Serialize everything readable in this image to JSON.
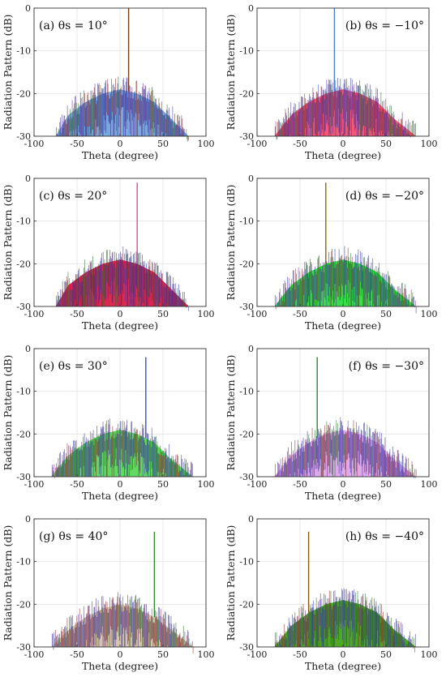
{
  "chart_data": [
    {
      "type": "bar",
      "panel_label": "(a) θs = 10°",
      "steer_angle_deg": 10,
      "xlabel": "Theta (degree)",
      "ylabel": "Radiation Pattern (dB)",
      "xlim": [
        -100,
        100
      ],
      "ylim": [
        -30,
        0
      ],
      "xticks": [
        "-100",
        "-50",
        "0",
        "50",
        "100"
      ],
      "yticks": [
        "0",
        "-10",
        "-20",
        "-30"
      ],
      "grid": true,
      "fill_color": "#6a9fd8",
      "spike_color": "#7a3b10",
      "sidelobe_envelope": [
        {
          "theta": -75,
          "level": -30
        },
        {
          "theta": -60,
          "level": -25
        },
        {
          "theta": -40,
          "level": -22
        },
        {
          "theta": -20,
          "level": -20
        },
        {
          "theta": 0,
          "level": -19
        },
        {
          "theta": 20,
          "level": -20
        },
        {
          "theta": 40,
          "level": -22
        },
        {
          "theta": 60,
          "level": -26
        },
        {
          "theta": 80,
          "level": -30
        }
      ],
      "main_beam": {
        "theta": 10,
        "level": 0
      }
    },
    {
      "type": "bar",
      "panel_label": "(b) θs = −10°",
      "steer_angle_deg": -10,
      "xlabel": "Theta (degree)",
      "ylabel": "Radiation Pattern (dB)",
      "xlim": [
        -100,
        100
      ],
      "ylim": [
        -30,
        0
      ],
      "xticks": [
        "-100",
        "-50",
        "0",
        "50",
        "100"
      ],
      "yticks": [
        "0",
        "-10",
        "-20",
        "-30"
      ],
      "grid": true,
      "fill_color": "#f0456a",
      "spike_color": "#4a7fd0",
      "sidelobe_envelope": [
        {
          "theta": -80,
          "level": -30
        },
        {
          "theta": -60,
          "level": -25
        },
        {
          "theta": -40,
          "level": -22
        },
        {
          "theta": -20,
          "level": -20
        },
        {
          "theta": 0,
          "level": -19
        },
        {
          "theta": 20,
          "level": -20
        },
        {
          "theta": 40,
          "level": -22
        },
        {
          "theta": 60,
          "level": -26
        },
        {
          "theta": 85,
          "level": -30
        }
      ],
      "main_beam": {
        "theta": -10,
        "level": 0
      }
    },
    {
      "type": "bar",
      "panel_label": "(c) θs = 20°",
      "steer_angle_deg": 20,
      "xlabel": "Theta (degree)",
      "ylabel": "Radiation Pattern (dB)",
      "xlim": [
        -100,
        100
      ],
      "ylim": [
        -30,
        0
      ],
      "xticks": [
        "-100",
        "-50",
        "0",
        "50",
        "100"
      ],
      "yticks": [
        "0",
        "-10",
        "-20",
        "-30"
      ],
      "grid": true,
      "fill_color": "#d8103c",
      "spike_color": "#d84aa0",
      "sidelobe_envelope": [
        {
          "theta": -75,
          "level": -30
        },
        {
          "theta": -60,
          "level": -25
        },
        {
          "theta": -40,
          "level": -22
        },
        {
          "theta": -20,
          "level": -20
        },
        {
          "theta": 0,
          "level": -19
        },
        {
          "theta": 20,
          "level": -20
        },
        {
          "theta": 40,
          "level": -22
        },
        {
          "theta": 60,
          "level": -26
        },
        {
          "theta": 80,
          "level": -30
        }
      ],
      "main_beam": {
        "theta": 20,
        "level": -1
      }
    },
    {
      "type": "bar",
      "panel_label": "(d) θs = −20°",
      "steer_angle_deg": -20,
      "xlabel": "Theta (degree)",
      "ylabel": "Radiation Pattern (dB)",
      "xlim": [
        -100,
        100
      ],
      "ylim": [
        -30,
        0
      ],
      "xticks": [
        "-100",
        "-50",
        "0",
        "50",
        "100"
      ],
      "yticks": [
        "0",
        "-10",
        "-20",
        "-30"
      ],
      "grid": true,
      "fill_color": "#22dd33",
      "spike_color": "#8a6a10",
      "sidelobe_envelope": [
        {
          "theta": -80,
          "level": -30
        },
        {
          "theta": -60,
          "level": -25
        },
        {
          "theta": -40,
          "level": -22
        },
        {
          "theta": -20,
          "level": -20
        },
        {
          "theta": 0,
          "level": -19
        },
        {
          "theta": 20,
          "level": -20
        },
        {
          "theta": 40,
          "level": -22
        },
        {
          "theta": 60,
          "level": -26
        },
        {
          "theta": 85,
          "level": -30
        }
      ],
      "main_beam": {
        "theta": -20,
        "level": -1
      }
    },
    {
      "type": "bar",
      "panel_label": "(e) θs = 30°",
      "steer_angle_deg": 30,
      "xlabel": "Theta (degree)",
      "ylabel": "Radiation Pattern (dB)",
      "xlim": [
        -100,
        100
      ],
      "ylim": [
        -30,
        0
      ],
      "xticks": [
        "-100",
        "-50",
        "0",
        "50",
        "100"
      ],
      "yticks": [
        "0",
        "-10",
        "-20",
        "-30"
      ],
      "grid": true,
      "fill_color": "#4fd64f",
      "spike_color": "#3a4fc0",
      "sidelobe_envelope": [
        {
          "theta": -80,
          "level": -30
        },
        {
          "theta": -60,
          "level": -25
        },
        {
          "theta": -40,
          "level": -22
        },
        {
          "theta": -20,
          "level": -20
        },
        {
          "theta": 0,
          "level": -19
        },
        {
          "theta": 20,
          "level": -20
        },
        {
          "theta": 40,
          "level": -22
        },
        {
          "theta": 60,
          "level": -26
        },
        {
          "theta": 85,
          "level": -30
        }
      ],
      "main_beam": {
        "theta": 30,
        "level": -2
      }
    },
    {
      "type": "bar",
      "panel_label": "(f) θs = −30°",
      "steer_angle_deg": -30,
      "xlabel": "Theta (degree)",
      "ylabel": "Radiation Pattern (dB)",
      "xlim": [
        -100,
        100
      ],
      "ylim": [
        -30,
        0
      ],
      "xticks": [
        "-100",
        "-50",
        "0",
        "50",
        "100"
      ],
      "yticks": [
        "0",
        "-10",
        "-20",
        "-30"
      ],
      "grid": true,
      "fill_color": "#d9a0e8",
      "spike_color": "#2a8a2a",
      "sidelobe_envelope": [
        {
          "theta": -80,
          "level": -30
        },
        {
          "theta": -60,
          "level": -25
        },
        {
          "theta": -40,
          "level": -22
        },
        {
          "theta": -20,
          "level": -20
        },
        {
          "theta": 0,
          "level": -19
        },
        {
          "theta": 20,
          "level": -20
        },
        {
          "theta": 40,
          "level": -22
        },
        {
          "theta": 60,
          "level": -26
        },
        {
          "theta": 85,
          "level": -30
        }
      ],
      "main_beam": {
        "theta": -30,
        "level": -2
      }
    },
    {
      "type": "bar",
      "panel_label": "(g) θs = 40°",
      "steer_angle_deg": 40,
      "xlabel": "Theta (degree)",
      "ylabel": "Radiation Pattern (dB)",
      "xlim": [
        -100,
        100
      ],
      "ylim": [
        -30,
        0
      ],
      "xticks": [
        "-100",
        "-50",
        "0",
        "50",
        "100"
      ],
      "yticks": [
        "0",
        "-10",
        "-20",
        "-30"
      ],
      "grid": true,
      "fill_color": "#cdbfa0",
      "spike_color": "#2a8a2a",
      "sidelobe_envelope": [
        {
          "theta": -80,
          "level": -30
        },
        {
          "theta": -60,
          "level": -26
        },
        {
          "theta": -40,
          "level": -23
        },
        {
          "theta": -20,
          "level": -21
        },
        {
          "theta": 0,
          "level": -20
        },
        {
          "theta": 20,
          "level": -21
        },
        {
          "theta": 40,
          "level": -23
        },
        {
          "theta": 60,
          "level": -26
        },
        {
          "theta": 85,
          "level": -30
        }
      ],
      "main_beam": {
        "theta": 40,
        "level": -3
      }
    },
    {
      "type": "bar",
      "panel_label": "(h) θs = −40°",
      "steer_angle_deg": -40,
      "xlabel": "Theta (degree)",
      "ylabel": "Radiation Pattern (dB)",
      "xlim": [
        -100,
        100
      ],
      "ylim": [
        -30,
        0
      ],
      "xticks": [
        "-100",
        "-50",
        "0",
        "50",
        "100"
      ],
      "yticks": [
        "0",
        "-10",
        "-20",
        "-30"
      ],
      "grid": true,
      "fill_color": "#3aa00a",
      "spike_color": "#8a5a10",
      "sidelobe_envelope": [
        {
          "theta": -80,
          "level": -30
        },
        {
          "theta": -60,
          "level": -25
        },
        {
          "theta": -40,
          "level": -22
        },
        {
          "theta": -20,
          "level": -20
        },
        {
          "theta": 0,
          "level": -19
        },
        {
          "theta": 20,
          "level": -20
        },
        {
          "theta": 40,
          "level": -22
        },
        {
          "theta": 60,
          "level": -26
        },
        {
          "theta": 85,
          "level": -30
        }
      ],
      "main_beam": {
        "theta": -40,
        "level": -3
      }
    }
  ]
}
